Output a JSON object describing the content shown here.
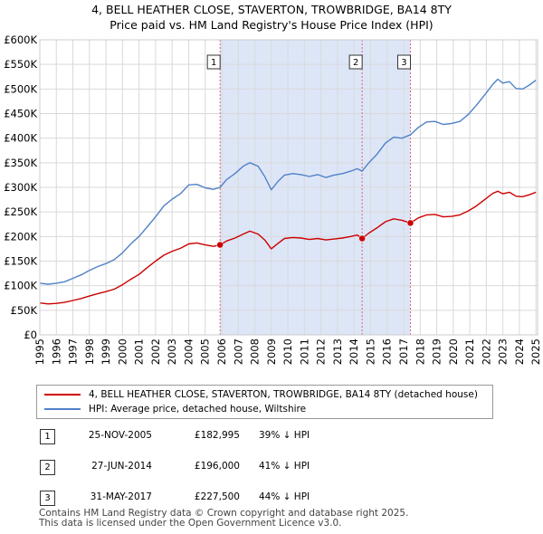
{
  "title_line1": "4, BELL HEATHER CLOSE, STAVERTON, TROWBRIDGE, BA14 8TY",
  "title_line2": "Price paid vs. HM Land Registry's House Price Index (HPI)",
  "colors": {
    "property": "#cc0000",
    "hpi": "#4f81c7",
    "shade": "#dde6f7",
    "grid": "#d9d9d9",
    "vline": "#dd6677"
  },
  "chart_data": {
    "type": "line",
    "title": "Price paid vs. HM Land Registry's House Price Index (HPI)",
    "xlabel": "",
    "ylabel": "",
    "xlim": [
      1995,
      2025.1
    ],
    "ylim": [
      0,
      600000
    ],
    "x_ticks": [
      1995,
      1996,
      1997,
      1998,
      1999,
      2000,
      2001,
      2002,
      2003,
      2004,
      2005,
      2006,
      2007,
      2008,
      2009,
      2010,
      2011,
      2012,
      2013,
      2014,
      2015,
      2016,
      2017,
      2018,
      2019,
      2020,
      2021,
      2022,
      2023,
      2024,
      2025
    ],
    "y_ticks": [
      {
        "value": 0,
        "label": "£0"
      },
      {
        "value": 50000,
        "label": "£50K"
      },
      {
        "value": 100000,
        "label": "£100K"
      },
      {
        "value": 150000,
        "label": "£150K"
      },
      {
        "value": 200000,
        "label": "£200K"
      },
      {
        "value": 250000,
        "label": "£250K"
      },
      {
        "value": 300000,
        "label": "£300K"
      },
      {
        "value": 350000,
        "label": "£350K"
      },
      {
        "value": 400000,
        "label": "£400K"
      },
      {
        "value": 450000,
        "label": "£450K"
      },
      {
        "value": 500000,
        "label": "£500K"
      },
      {
        "value": 550000,
        "label": "£550K"
      },
      {
        "value": 600000,
        "label": "£600K"
      }
    ],
    "shaded_region": [
      2005.9,
      2017.41
    ],
    "series": [
      {
        "name": "4, BELL HEATHER CLOSE, STAVERTON, TROWBRIDGE, BA14 8TY (detached house)",
        "color": "#cc0000",
        "x": [
          1995,
          1995.5,
          1996,
          1996.5,
          1997,
          1997.5,
          1998,
          1998.5,
          1999,
          1999.5,
          2000,
          2000.5,
          2001,
          2001.5,
          2002,
          2002.5,
          2003,
          2003.5,
          2004,
          2004.5,
          2005,
          2005.5,
          2005.9,
          2006.3,
          2006.8,
          2007.3,
          2007.7,
          2008.2,
          2008.6,
          2009.0,
          2009.4,
          2009.8,
          2010.3,
          2010.8,
          2011.3,
          2011.8,
          2012.3,
          2012.8,
          2013.3,
          2013.8,
          2014.2,
          2014.49,
          2014.9,
          2015.4,
          2015.9,
          2016.4,
          2016.9,
          2017.41,
          2017.9,
          2018.4,
          2018.9,
          2019.4,
          2019.9,
          2020.4,
          2020.9,
          2021.4,
          2021.9,
          2022.4,
          2022.7,
          2023.0,
          2023.4,
          2023.8,
          2024.2,
          2024.6,
          2025.0
        ],
        "values": [
          65000,
          63000,
          64000,
          66000,
          70000,
          74000,
          79000,
          84000,
          88000,
          93000,
          102000,
          113000,
          123000,
          137000,
          150000,
          162000,
          170000,
          176000,
          185000,
          187000,
          183000,
          180000,
          182995,
          191000,
          197000,
          205000,
          211000,
          205000,
          193000,
          175000,
          186000,
          196000,
          198000,
          197000,
          194000,
          196000,
          193000,
          195000,
          197000,
          200000,
          203000,
          196000,
          207000,
          218000,
          230000,
          236000,
          233000,
          227500,
          238000,
          244000,
          245000,
          240000,
          241000,
          244000,
          252000,
          262000,
          275000,
          288000,
          292000,
          287000,
          290000,
          282000,
          281000,
          285000,
          290000
        ]
      },
      {
        "name": "HPI: Average price, detached house, Wiltshire",
        "color": "#4f81c7",
        "x": [
          1995,
          1995.5,
          1996,
          1996.5,
          1997,
          1997.5,
          1998,
          1998.5,
          1999,
          1999.5,
          2000,
          2000.5,
          2001,
          2001.5,
          2002,
          2002.5,
          2003,
          2003.5,
          2004,
          2004.5,
          2005,
          2005.5,
          2005.9,
          2006.3,
          2006.8,
          2007.3,
          2007.7,
          2008.2,
          2008.6,
          2009.0,
          2009.4,
          2009.8,
          2010.3,
          2010.8,
          2011.3,
          2011.8,
          2012.3,
          2012.8,
          2013.3,
          2013.8,
          2014.2,
          2014.49,
          2014.9,
          2015.4,
          2015.9,
          2016.4,
          2016.9,
          2017.41,
          2017.9,
          2018.4,
          2018.9,
          2019.4,
          2019.9,
          2020.4,
          2020.9,
          2021.4,
          2021.9,
          2022.4,
          2022.7,
          2023.0,
          2023.4,
          2023.8,
          2024.2,
          2024.6,
          2025.0
        ],
        "values": [
          105000,
          103000,
          105000,
          108000,
          115000,
          122000,
          131000,
          139000,
          145000,
          153000,
          167000,
          185000,
          200000,
          220000,
          240000,
          262000,
          276000,
          287000,
          305000,
          306000,
          299000,
          296000,
          300000,
          316000,
          328000,
          343000,
          350000,
          343000,
          322000,
          295000,
          312000,
          325000,
          328000,
          326000,
          322000,
          326000,
          320000,
          325000,
          328000,
          333000,
          338000,
          333000,
          350000,
          368000,
          390000,
          402000,
          400000,
          407000,
          422000,
          433000,
          434000,
          428000,
          430000,
          434000,
          448000,
          467000,
          488000,
          510000,
          520000,
          512000,
          515000,
          501000,
          500000,
          508000,
          518000
        ]
      }
    ],
    "markers": [
      {
        "label": "1",
        "x": 2005.9,
        "value": 182995
      },
      {
        "label": "2",
        "x": 2014.49,
        "value": 196000
      },
      {
        "label": "3",
        "x": 2017.41,
        "value": 227500
      }
    ]
  },
  "legend": {
    "property_label": "4, BELL HEATHER CLOSE, STAVERTON, TROWBRIDGE, BA14 8TY (detached house)",
    "hpi_label": "HPI: Average price, detached house, Wiltshire"
  },
  "transactions": [
    {
      "num": "1",
      "date": "25-NOV-2005",
      "price": "£182,995",
      "hpi": "39% ↓ HPI"
    },
    {
      "num": "2",
      "date": "27-JUN-2014",
      "price": "£196,000",
      "hpi": "41% ↓ HPI"
    },
    {
      "num": "3",
      "date": "31-MAY-2017",
      "price": "£227,500",
      "hpi": "44% ↓ HPI"
    }
  ],
  "footer": {
    "line1": "Contains HM Land Registry data © Crown copyright and database right 2025.",
    "line2": "This data is licensed under the Open Government Licence v3.0."
  }
}
